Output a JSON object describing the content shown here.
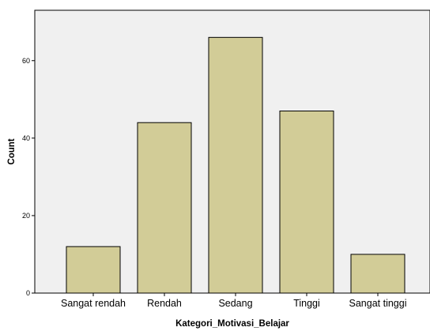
{
  "chart_data": {
    "type": "bar",
    "categories": [
      "Sangat rendah",
      "Rendah",
      "Sedang",
      "Tinggi",
      "Sangat tinggi"
    ],
    "values": [
      12,
      44,
      66,
      47,
      10
    ],
    "xlabel": "Kategori_Motivasi_Belajar",
    "ylabel": "Count",
    "ylim": [
      0,
      73
    ],
    "yticks": [
      0,
      20,
      40,
      60
    ],
    "grid": false,
    "colors": {
      "bar_fill": "#d2cc97",
      "bar_stroke": "#000000",
      "plot_background": "#f0f0f0",
      "axis": "#000000"
    }
  }
}
